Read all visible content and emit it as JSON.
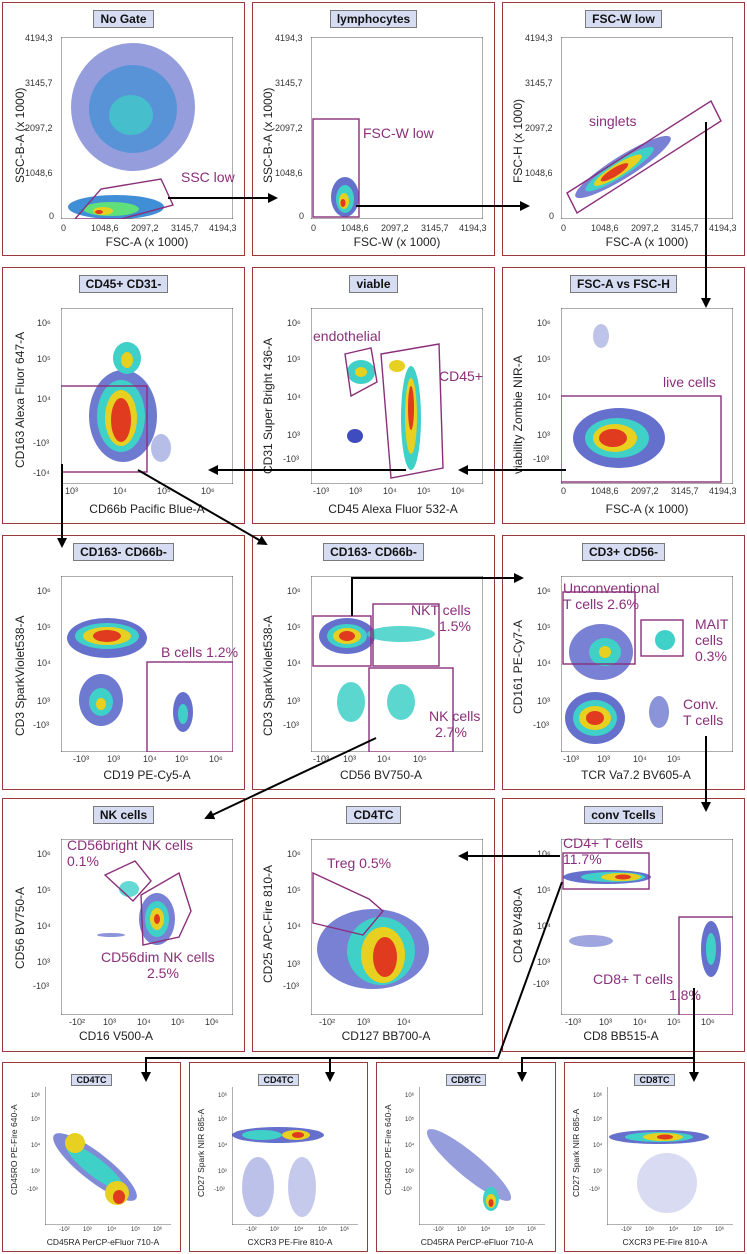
{
  "panels": {
    "p1": {
      "title": "No Gate",
      "xlabel": "FSC-A (x 1000)",
      "ylabel": "SSC-B-A (x 1000)",
      "gate": "SSC low",
      "xticks": [
        "0",
        "1048,6",
        "2097,2",
        "3145,7",
        "4194,3"
      ],
      "yticks": [
        "4194,3",
        "3145,7",
        "2097,2",
        "1048,6",
        "0"
      ]
    },
    "p2": {
      "title": "lymphocytes",
      "xlabel": "FSC-W (x 1000)",
      "ylabel": "SSC-B-A (x 1000)",
      "gate": "FSC-W low",
      "xticks": [
        "0",
        "1048,6",
        "2097,2",
        "3145,7",
        "4194,3"
      ],
      "yticks": [
        "4194,3",
        "3145,7",
        "2097,2",
        "1048,6",
        "0"
      ]
    },
    "p3": {
      "title": "FSC-W  low",
      "xlabel": "FSC-A (x 1000)",
      "ylabel": "FSC-H (x 1000)",
      "gate": "singlets",
      "xticks": [
        "0",
        "1048,6",
        "2097,2",
        "3145,7",
        "4194,3"
      ],
      "yticks": [
        "4194,3",
        "3145,7",
        "2097,2",
        "1048,6",
        "0"
      ]
    },
    "p4": {
      "title": "CD45+ CD31-",
      "xlabel": "CD66b Pacific Blue-A",
      "ylabel": "CD163 Alexa Fluor 647-A",
      "xticks": [
        "10³",
        "10⁴",
        "10⁵",
        "10⁶"
      ],
      "yticks": [
        "10⁶",
        "10⁵",
        "10⁴",
        "-10³",
        "-10⁴"
      ]
    },
    "p5": {
      "title": "viable",
      "xlabel": "CD45 Alexa Fluor 532-A",
      "ylabel": "CD31 Super Bright 436-A",
      "gate1": "endothelial",
      "gate2": "CD45+",
      "xticks": [
        "-10³",
        "10³",
        "10⁴",
        "10⁵",
        "10⁶"
      ],
      "yticks": [
        "10⁶",
        "10⁵",
        "10⁴",
        "10³",
        "-10³"
      ]
    },
    "p6": {
      "title": "FSC-A vs FSC-H",
      "xlabel": "FSC-A (x 1000)",
      "ylabel": "viability Zombie NIR-A",
      "gate": "live cells",
      "xticks": [
        "0",
        "1048,6",
        "2097,2",
        "3145,7",
        "4194,3"
      ],
      "yticks": [
        "10⁶",
        "10⁵",
        "10⁴",
        "10³",
        "-10³"
      ]
    },
    "p7": {
      "title": "CD163- CD66b-",
      "xlabel": "CD19 PE-Cy5-A",
      "ylabel": "CD3 SparkViolet538-A",
      "gate": "B cells 1.2%",
      "xticks": [
        "-10³",
        "10³",
        "10⁴",
        "10⁵",
        "10⁶"
      ],
      "yticks": [
        "10⁶",
        "10⁵",
        "10⁴",
        "10³",
        "-10³"
      ]
    },
    "p8": {
      "title": "CD163- CD66b-",
      "xlabel": "CD56 BV750-A",
      "ylabel": "CD3 SparkViolet538-A",
      "gate1a": "NKT cells",
      "gate1b": "1.5%",
      "gate2a": "NK cells",
      "gate2b": "2.7%",
      "xticks": [
        "-10³",
        "10³",
        "10⁴",
        "10⁵"
      ],
      "yticks": [
        "10⁶",
        "10⁵",
        "10⁴",
        "10³",
        "-10³"
      ]
    },
    "p9": {
      "title": "CD3+ CD56-",
      "xlabel": "TCR Va7.2 BV605-A",
      "ylabel": "CD161 PE-Cy7-A",
      "gate1a": "Unconventional",
      "gate1b": "T cells 2.6%",
      "gate2a": "MAIT",
      "gate2b": "cells",
      "gate2c": "0.3%",
      "gate3a": "Conv.",
      "gate3b": "T cells",
      "xticks": [
        "-10³",
        "10³",
        "10⁴",
        "10⁵"
      ],
      "yticks": [
        "10⁶",
        "10⁵",
        "10⁴",
        "10³",
        "-10³"
      ]
    },
    "p10": {
      "title": "NK cells",
      "xlabel": "CD16 V500-A",
      "ylabel": "CD56 BV750-A",
      "gate1a": "CD56bright NK cells",
      "gate1b": "0.1%",
      "gate2a": "CD56dim NK cells",
      "gate2b": "2.5%",
      "xticks": [
        "-10²",
        "10³",
        "10⁴",
        "10⁵",
        "10⁶"
      ],
      "yticks": [
        "10⁶",
        "10⁵",
        "10⁴",
        "10³",
        "-10³"
      ]
    },
    "p11": {
      "title": "CD4TC",
      "xlabel": "CD127 BB700-A",
      "ylabel": "CD25 APC-Fire 810-A",
      "gate": "Treg 0.5%",
      "xticks": [
        "-10²",
        "10³",
        "10⁴"
      ],
      "yticks": [
        "10⁶",
        "10⁵",
        "10⁴",
        "10³",
        "-10³"
      ]
    },
    "p12": {
      "title": "conv Tcells",
      "xlabel": "CD8 BB515-A",
      "ylabel": "CD4 BV480-A",
      "gate1a": "CD4+ T cells",
      "gate1b": "11.7%",
      "gate2a": "CD8+ T cells",
      "gate2b": "1.8%",
      "xticks": [
        "-10³",
        "10³",
        "10⁴",
        "10⁵",
        "10⁶"
      ],
      "yticks": [
        "10⁶",
        "10⁵",
        "10⁴",
        "10³",
        "-10³"
      ]
    },
    "p13": {
      "title": "CD4TC",
      "xlabel": "CD45RA PerCP-eFluor 710-A",
      "ylabel": "CD45RO PE-Fire 640-A",
      "xticks": [
        "-10²",
        "10³",
        "10⁴",
        "10⁵",
        "10⁶"
      ],
      "yticks": [
        "10⁶",
        "10⁵",
        "10⁴",
        "10³",
        "-10³"
      ]
    },
    "p14": {
      "title": "CD4TC",
      "xlabel": "CXCR3 PE-Fire 810-A",
      "ylabel": "CD27 Spark NIR 685-A",
      "xticks": [
        "-10²",
        "10³",
        "10⁴",
        "10⁵",
        "10⁶"
      ],
      "yticks": [
        "10⁶",
        "10⁵",
        "10⁴",
        "10³",
        "-10³"
      ]
    },
    "p15": {
      "title": "CD8TC",
      "xlabel": "CD45RA PerCP-eFluor 710-A",
      "ylabel": "CD45RO PE-Fire 640-A",
      "xticks": [
        "-10²",
        "10³",
        "10⁴",
        "10⁵",
        "10⁶"
      ],
      "yticks": [
        "10⁶",
        "10⁵",
        "10⁴",
        "10³",
        "-10³"
      ]
    },
    "p16": {
      "title": "CD8TC",
      "xlabel": "CXCR3 PE-Fire 810-A",
      "ylabel": "CD27 Spark NIR 685-A",
      "xticks": [
        "-10²",
        "10³",
        "10⁴",
        "10⁵",
        "10⁶"
      ],
      "yticks": [
        "10⁶",
        "10⁵",
        "10⁴",
        "10³",
        "-10³"
      ]
    }
  },
  "colors": {
    "border": "#9a3b3b",
    "gate": "#8a2f7a",
    "title_bg": "#d6dcf2",
    "arrow": "#000000"
  }
}
